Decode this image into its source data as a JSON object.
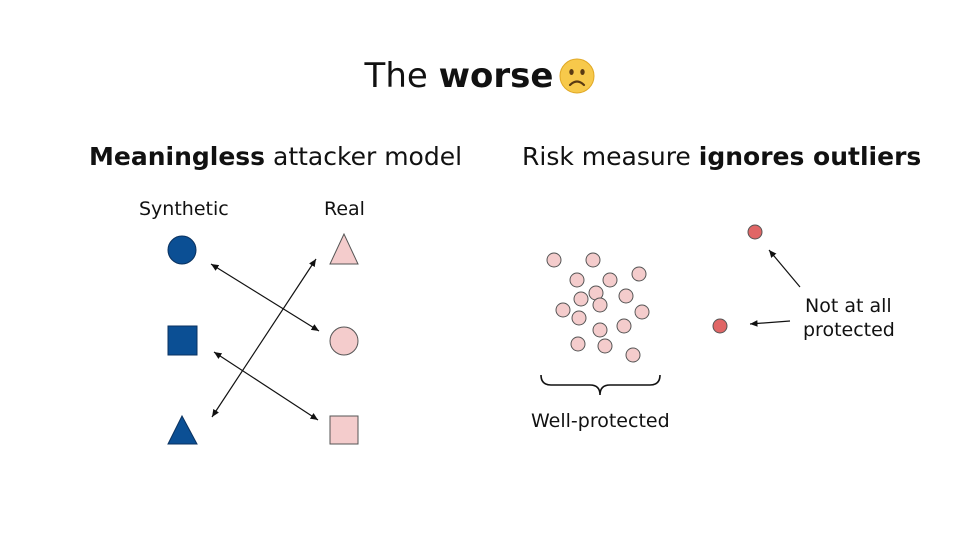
{
  "title": {
    "prefix": "The ",
    "emphasis": "worse",
    "emoji_icon": "frowning-face-icon"
  },
  "left_panel": {
    "heading_emphasis": "Meaningless",
    "heading_rest": " attacker model",
    "col_synthetic": "Synthetic",
    "col_real": "Real",
    "synthetic_shapes": [
      "circle",
      "square",
      "triangle"
    ],
    "real_shapes": [
      "triangle",
      "circle",
      "square"
    ],
    "synthetic_color": "#0b4f94",
    "real_color": "#f4cccc"
  },
  "right_panel": {
    "heading_prefix": "Risk measure ",
    "heading_emphasis": "ignores outliers",
    "cluster_label": "Well-protected",
    "outlier_label_line1": "Not at all",
    "outlier_label_line2": "protected",
    "cluster_color": "#f4cccc",
    "outlier_color": "#e06666"
  }
}
